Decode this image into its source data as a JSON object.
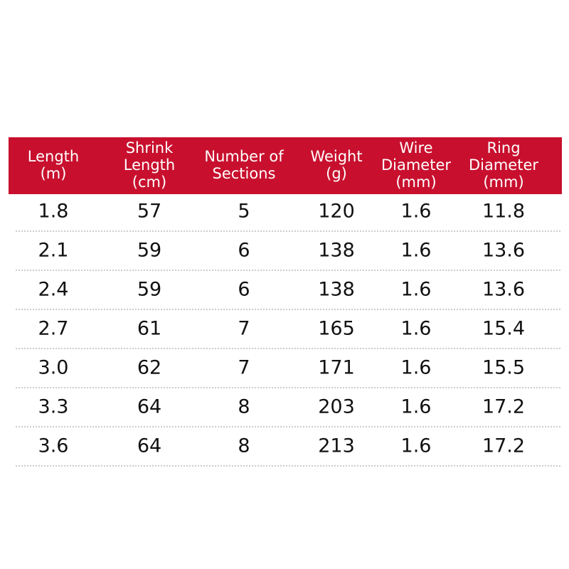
{
  "table": {
    "headers": [
      [
        "Length",
        "(m)"
      ],
      [
        "Shrink",
        "Length",
        "(cm)"
      ],
      [
        "Number of",
        "Sections"
      ],
      [
        "Weight",
        "(g)"
      ],
      [
        "Wire",
        "Diameter",
        "(mm)"
      ],
      [
        "Ring",
        "Diameter",
        "(mm)"
      ]
    ],
    "rows": [
      [
        "1.8",
        "57",
        "5",
        "120",
        "1.6",
        "11.8"
      ],
      [
        "2.1",
        "59",
        "6",
        "138",
        "1.6",
        "13.6"
      ],
      [
        "2.4",
        "59",
        "6",
        "138",
        "1.6",
        "13.6"
      ],
      [
        "2.7",
        "61",
        "7",
        "165",
        "1.6",
        "15.4"
      ],
      [
        "3.0",
        "62",
        "7",
        "171",
        "1.6",
        "15.5"
      ],
      [
        "3.3",
        "64",
        "8",
        "203",
        "1.6",
        "17.2"
      ],
      [
        "3.6",
        "64",
        "8",
        "213",
        "1.6",
        "17.2"
      ]
    ]
  }
}
